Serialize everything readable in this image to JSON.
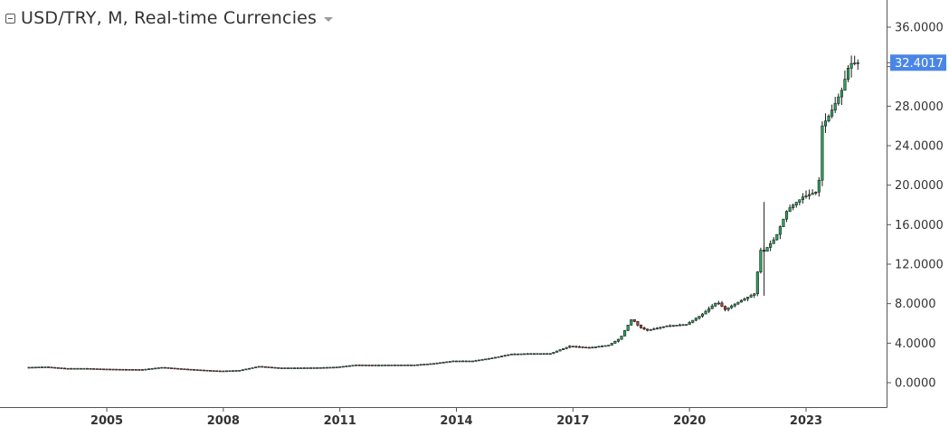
{
  "header": {
    "title": "USD/TRY, M, Real-time Currencies",
    "collapse_icon": "collapse-square-icon",
    "menu_icon": "chevron-down-icon"
  },
  "chart_data": {
    "type": "candlestick",
    "title": "USD/TRY, M, Real-time Currencies",
    "ylim": [
      -1,
      38
    ],
    "y_ticks": [
      "0.0000",
      "4.0000",
      "8.0000",
      "12.0000",
      "16.0000",
      "20.0000",
      "24.0000",
      "28.0000",
      "32.0000",
      "36.0000"
    ],
    "x_ticks": [
      "2005",
      "2008",
      "2011",
      "2014",
      "2017",
      "2020",
      "2023"
    ],
    "last_price": "32.4017",
    "colors": {
      "up": "#26a65b",
      "down": "#c0392b",
      "price_label": "#4a86e8",
      "axis": "#555555"
    },
    "series": [
      {
        "t": 2003.0,
        "v": 1.55
      },
      {
        "t": 2003.5,
        "v": 1.6
      },
      {
        "t": 2004.0,
        "v": 1.45
      },
      {
        "t": 2004.5,
        "v": 1.45
      },
      {
        "t": 2005.0,
        "v": 1.38
      },
      {
        "t": 2005.5,
        "v": 1.35
      },
      {
        "t": 2006.0,
        "v": 1.33
      },
      {
        "t": 2006.5,
        "v": 1.55
      },
      {
        "t": 2007.0,
        "v": 1.4
      },
      {
        "t": 2007.5,
        "v": 1.28
      },
      {
        "t": 2008.0,
        "v": 1.18
      },
      {
        "t": 2008.5,
        "v": 1.25
      },
      {
        "t": 2009.0,
        "v": 1.65
      },
      {
        "t": 2009.5,
        "v": 1.5
      },
      {
        "t": 2010.0,
        "v": 1.5
      },
      {
        "t": 2010.5,
        "v": 1.52
      },
      {
        "t": 2011.0,
        "v": 1.58
      },
      {
        "t": 2011.5,
        "v": 1.8
      },
      {
        "t": 2012.0,
        "v": 1.78
      },
      {
        "t": 2012.5,
        "v": 1.8
      },
      {
        "t": 2013.0,
        "v": 1.8
      },
      {
        "t": 2013.5,
        "v": 1.95
      },
      {
        "t": 2014.0,
        "v": 2.2
      },
      {
        "t": 2014.5,
        "v": 2.2
      },
      {
        "t": 2015.0,
        "v": 2.5
      },
      {
        "t": 2015.5,
        "v": 2.9
      },
      {
        "t": 2016.0,
        "v": 2.95
      },
      {
        "t": 2016.5,
        "v": 2.95
      },
      {
        "t": 2017.0,
        "v": 3.7
      },
      {
        "t": 2017.5,
        "v": 3.55
      },
      {
        "t": 2018.0,
        "v": 3.8
      },
      {
        "t": 2018.3,
        "v": 4.5
      },
      {
        "t": 2018.6,
        "v": 6.5
      },
      {
        "t": 2018.8,
        "v": 5.6
      },
      {
        "t": 2019.0,
        "v": 5.3
      },
      {
        "t": 2019.5,
        "v": 5.75
      },
      {
        "t": 2020.0,
        "v": 5.9
      },
      {
        "t": 2020.4,
        "v": 6.9
      },
      {
        "t": 2020.8,
        "v": 8.2
      },
      {
        "t": 2021.0,
        "v": 7.4
      },
      {
        "t": 2021.4,
        "v": 8.3
      },
      {
        "t": 2021.75,
        "v": 9.0
      },
      {
        "t": 2021.92,
        "v": 13.5
      },
      {
        "t": 2022.0,
        "v": 13.3
      },
      {
        "t": 2022.3,
        "v": 14.7
      },
      {
        "t": 2022.6,
        "v": 17.5
      },
      {
        "t": 2023.0,
        "v": 18.8
      },
      {
        "t": 2023.4,
        "v": 19.4
      },
      {
        "t": 2023.5,
        "v": 26.0
      },
      {
        "t": 2023.7,
        "v": 27.2
      },
      {
        "t": 2024.0,
        "v": 29.6
      },
      {
        "t": 2024.2,
        "v": 32.3
      },
      {
        "t": 2024.4,
        "v": 32.4
      }
    ],
    "spike": {
      "t": 2021.92,
      "high": 18.3
    }
  }
}
